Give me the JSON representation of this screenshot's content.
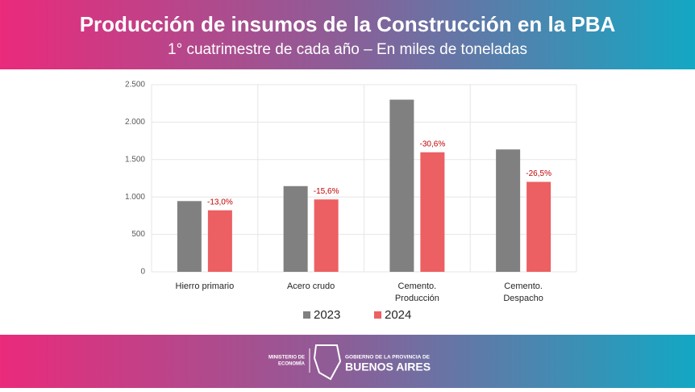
{
  "header": {
    "title": "Producción de insumos de la Construcción en la PBA",
    "subtitle": "1° cuatrimestre de cada año – En miles de toneladas"
  },
  "chart_data": {
    "type": "bar",
    "categories": [
      [
        "Hierro primario"
      ],
      [
        "Acero crudo"
      ],
      [
        "Cemento.",
        "Producción"
      ],
      [
        "Cemento.",
        "Despacho"
      ]
    ],
    "series": [
      {
        "name": "2023",
        "color": "#808080",
        "values": [
          945,
          1145,
          2300,
          1635
        ]
      },
      {
        "name": "2024",
        "color": "#ec5f62",
        "values": [
          822,
          967,
          1597,
          1202
        ],
        "annotations": [
          "-13,0%",
          "-15,6%",
          "-30,6%",
          "-26,5%"
        ]
      }
    ],
    "ylim": [
      0,
      2500
    ],
    "yticks": [
      0,
      500,
      {
        "value": 1000,
        "label": "1.000"
      },
      {
        "value": 1500,
        "label": "1.500"
      },
      {
        "value": 2000,
        "label": "2.000"
      },
      {
        "value": 2500,
        "label": "2.500"
      }
    ],
    "grid": true,
    "legend": "bottom"
  },
  "footer": {
    "ministry": [
      "MINISTERIO DE",
      "ECONOMÍA"
    ],
    "government": "GOBIERNO DE LA PROVINCIA DE",
    "province": "BUENOS AIRES"
  }
}
